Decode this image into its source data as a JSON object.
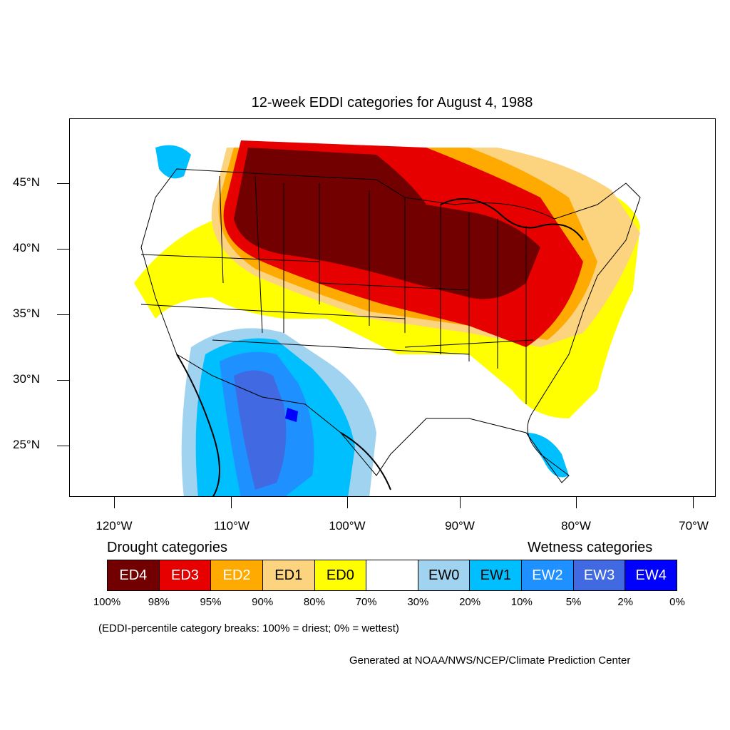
{
  "title": "12-week EDDI categories for August 4, 1988",
  "lat_labels": [
    "45°N",
    "40°N",
    "35°N",
    "30°N",
    "25°N"
  ],
  "lon_labels": [
    "120°W",
    "110°W",
    "100°W",
    "90°W",
    "80°W",
    "70°W"
  ],
  "legend": {
    "drought_heading": "Drought categories",
    "wetness_heading": "Wetness categories",
    "categories": [
      {
        "label": "ED4",
        "color": "#730000",
        "text_color": "#ffffff"
      },
      {
        "label": "ED3",
        "color": "#e60000",
        "text_color": "#ffffff"
      },
      {
        "label": "ED2",
        "color": "#ffaa00",
        "text_color": "#ffffff"
      },
      {
        "label": "ED1",
        "color": "#fcd37f",
        "text_color": "#000000"
      },
      {
        "label": "ED0",
        "color": "#ffff00",
        "text_color": "#000000"
      },
      {
        "label": "",
        "color": "#ffffff",
        "text_color": "#000000"
      },
      {
        "label": "EW0",
        "color": "#9fd3f0",
        "text_color": "#000000"
      },
      {
        "label": "EW1",
        "color": "#00bfff",
        "text_color": "#000000"
      },
      {
        "label": "EW2",
        "color": "#1e90ff",
        "text_color": "#ffffff"
      },
      {
        "label": "EW3",
        "color": "#4169e1",
        "text_color": "#ffffff"
      },
      {
        "label": "EW4",
        "color": "#0000ff",
        "text_color": "#ffffff"
      }
    ],
    "breaks": [
      "100%",
      "98%",
      "95%",
      "90%",
      "80%",
      "70%",
      "30%",
      "20%",
      "10%",
      "5%",
      "2%",
      "0%"
    ],
    "note": "(EDDI-percentile category breaks: 100% = driest; 0% = wettest)"
  },
  "credit": "Generated at NOAA/NWS/NCEP/Climate Prediction Center"
}
